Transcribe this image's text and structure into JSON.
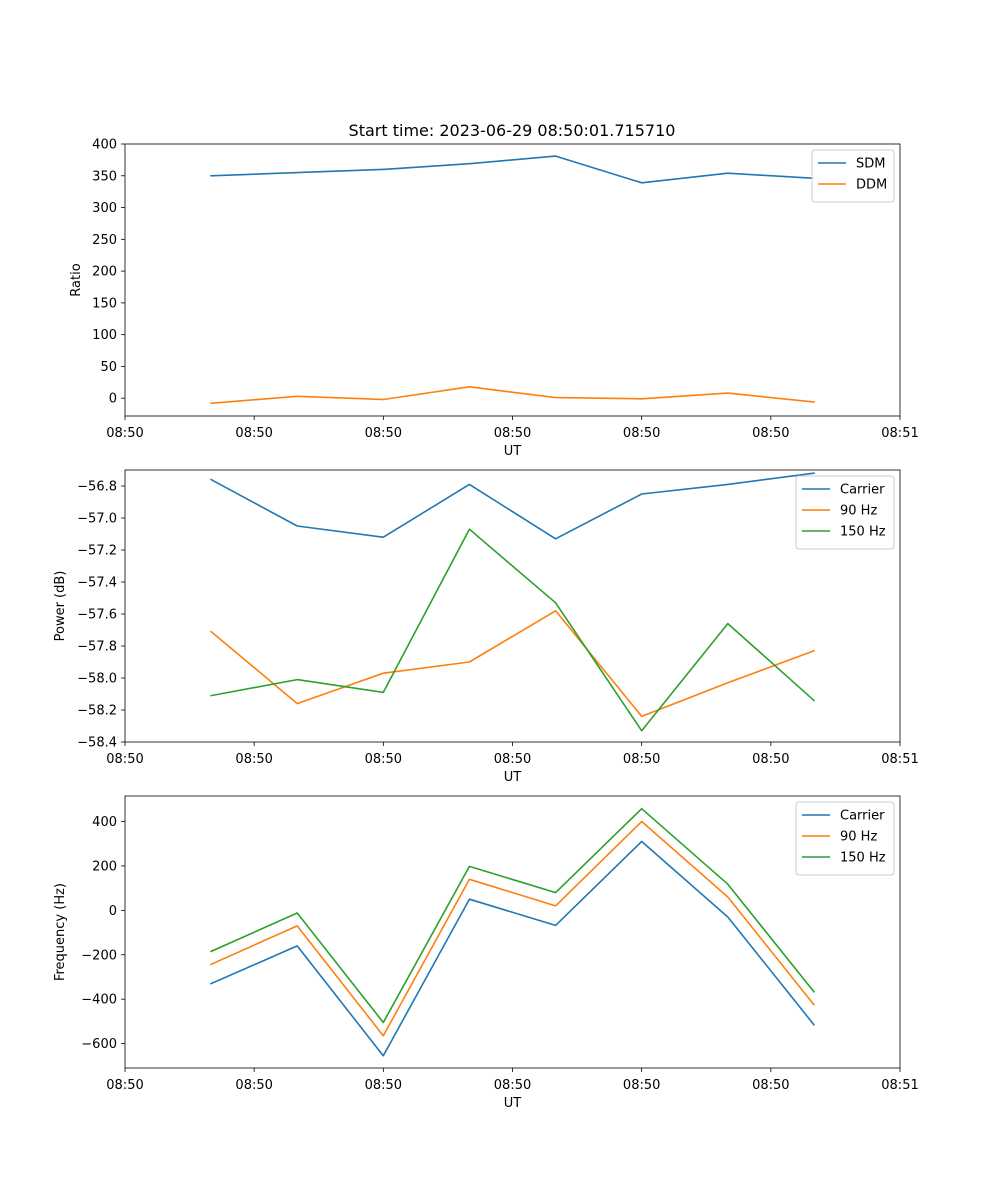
{
  "title": "Start time: 2023-06-29 08:50:01.715710",
  "chart_data": [
    {
      "type": "line",
      "ylabel": "Ratio",
      "xlabel": "UT",
      "xlim": [
        0,
        9
      ],
      "ylim": [
        -28,
        400
      ],
      "x": [
        1,
        2,
        3,
        4,
        5,
        6,
        7,
        8
      ],
      "xticks": [
        0,
        1.5,
        3,
        4.5,
        6,
        7.5,
        9
      ],
      "xtick_labels": [
        "08:50",
        "08:50",
        "08:50",
        "08:50",
        "08:50",
        "08:50",
        "08:51"
      ],
      "yticks": [
        0,
        50,
        100,
        150,
        200,
        250,
        300,
        350,
        400
      ],
      "ytick_labels": [
        "0",
        "50",
        "100",
        "150",
        "200",
        "250",
        "300",
        "350",
        "400"
      ],
      "legend": "upper right",
      "series": [
        {
          "name": "SDM",
          "color": "#1f77b4",
          "values": [
            350,
            355,
            360,
            369,
            381,
            339,
            354,
            346
          ]
        },
        {
          "name": "DDM",
          "color": "#ff7f0e",
          "values": [
            -8,
            3,
            -2,
            18,
            1,
            -1,
            8,
            -6
          ]
        }
      ]
    },
    {
      "type": "line",
      "ylabel": "Power (dB)",
      "xlabel": "UT",
      "xlim": [
        0,
        9
      ],
      "ylim": [
        -58.4,
        -56.7
      ],
      "x": [
        1,
        2,
        3,
        4,
        5,
        6,
        7,
        8
      ],
      "xticks": [
        0,
        1.5,
        3,
        4.5,
        6,
        7.5,
        9
      ],
      "xtick_labels": [
        "08:50",
        "08:50",
        "08:50",
        "08:50",
        "08:50",
        "08:50",
        "08:51"
      ],
      "yticks": [
        -58.4,
        -58.2,
        -58.0,
        -57.8,
        -57.6,
        -57.4,
        -57.2,
        -57.0,
        -56.8
      ],
      "ytick_labels": [
        "−58.4",
        "−58.2",
        "−58.0",
        "−57.8",
        "−57.6",
        "−57.4",
        "−57.2",
        "−57.0",
        "−56.8"
      ],
      "legend": "upper right",
      "series": [
        {
          "name": "Carrier",
          "color": "#1f77b4",
          "values": [
            -56.76,
            -57.05,
            -57.12,
            -56.79,
            -57.13,
            -56.85,
            -56.79,
            -56.72
          ]
        },
        {
          "name": "90 Hz",
          "color": "#ff7f0e",
          "values": [
            -57.71,
            -58.16,
            -57.97,
            -57.9,
            -57.58,
            -58.24,
            -58.03,
            -57.83
          ]
        },
        {
          "name": "150 Hz",
          "color": "#2ca02c",
          "values": [
            -58.11,
            -58.01,
            -58.09,
            -57.07,
            -57.53,
            -58.33,
            -57.66,
            -58.14
          ]
        }
      ]
    },
    {
      "type": "line",
      "ylabel": "Frequency (Hz)",
      "xlabel": "UT",
      "xlim": [
        0,
        9
      ],
      "ylim": [
        -710,
        515
      ],
      "x": [
        1,
        2,
        3,
        4,
        5,
        6,
        7,
        8
      ],
      "xticks": [
        0,
        1.5,
        3,
        4.5,
        6,
        7.5,
        9
      ],
      "xtick_labels": [
        "08:50",
        "08:50",
        "08:50",
        "08:50",
        "08:50",
        "08:50",
        "08:51"
      ],
      "yticks": [
        -600,
        -400,
        -200,
        0,
        200,
        400
      ],
      "ytick_labels": [
        "−600",
        "−400",
        "−200",
        "0",
        "200",
        "400"
      ],
      "legend": "upper right",
      "series": [
        {
          "name": "Carrier",
          "color": "#1f77b4",
          "values": [
            -330,
            -160,
            -655,
            50,
            -68,
            310,
            -30,
            -515
          ]
        },
        {
          "name": "90 Hz",
          "color": "#ff7f0e",
          "values": [
            -243,
            -70,
            -565,
            140,
            20,
            400,
            60,
            -425
          ]
        },
        {
          "name": "150 Hz",
          "color": "#2ca02c",
          "values": [
            -185,
            -12,
            -505,
            198,
            80,
            458,
            118,
            -367
          ]
        }
      ]
    }
  ]
}
